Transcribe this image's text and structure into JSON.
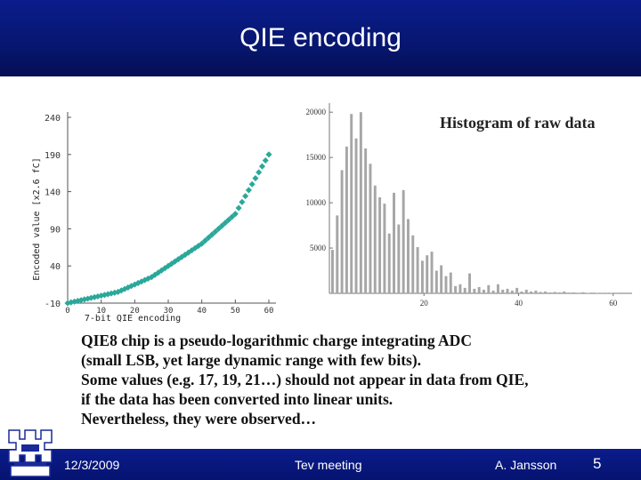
{
  "slide": {
    "title": "QIE encoding",
    "body_lines": [
      "QIE8 chip is a pseudo-logarithmic charge integrating ADC",
      "(small LSB, yet large dynamic range with few bits).",
      "Some  values (e.g. 17, 19, 21…) should not appear in data from QIE,",
      "if the data has been converted into linear units.",
      "Nevertheless, they were observed…"
    ],
    "footer": {
      "date": "12/3/2009",
      "meeting": "Tev meeting",
      "author": "A. Jansson",
      "page": "5"
    },
    "colors": {
      "title_band": "#07166f",
      "marker": "#2aa89a",
      "histogram_bar": "#a6a6a6"
    },
    "logo_icon": "fermilab-logo-icon"
  },
  "chart_data": [
    {
      "type": "scatter",
      "title": "",
      "xlabel": "7-bit QIE encoding",
      "ylabel": "Encoded value [x2.6 fC]",
      "x_ticks": [
        "0",
        "10",
        "20",
        "30",
        "40",
        "50",
        "60"
      ],
      "y_ticks": [
        "-10",
        "40",
        "90",
        "140",
        "190",
        "240"
      ],
      "xlim": [
        0,
        60
      ],
      "ylim": [
        -10,
        240
      ],
      "grid": false,
      "series": [
        {
          "x": [
            0,
            1,
            2,
            3,
            4,
            5,
            6,
            7,
            8,
            9,
            10,
            11,
            12,
            13,
            14,
            15,
            16,
            17,
            18,
            19,
            20,
            21,
            22,
            23,
            24,
            25,
            26,
            27,
            28,
            29,
            30,
            31,
            32,
            33,
            34,
            35,
            36,
            37,
            38,
            39,
            40,
            41,
            42,
            43,
            44,
            45,
            46,
            47,
            48,
            49,
            50,
            51,
            52,
            53,
            54,
            55,
            56,
            57,
            58,
            59,
            60
          ],
          "y": [
            -10,
            -9,
            -8,
            -7,
            -6,
            -5,
            -4,
            -3,
            -2,
            -1,
            0,
            1,
            2,
            3,
            4,
            5,
            7,
            9,
            11,
            13,
            15,
            17,
            19,
            21,
            23,
            25,
            28,
            31,
            34,
            37,
            40,
            43,
            46,
            49,
            52,
            55,
            58,
            61,
            64,
            67,
            70,
            74,
            78,
            82,
            86,
            90,
            94,
            98,
            102,
            106,
            110,
            118,
            126,
            134,
            142,
            150,
            158,
            166,
            174,
            182,
            190
          ]
        }
      ]
    },
    {
      "type": "bar",
      "title": "Histogram of raw data",
      "xlabel": "",
      "ylabel": "",
      "x_ticks": [
        "20",
        "40",
        "60"
      ],
      "y_ticks": [
        "5000",
        "10000",
        "15000",
        "20000"
      ],
      "xlim": [
        0,
        64
      ],
      "ylim": [
        0,
        21000
      ],
      "categories": [
        0,
        1,
        2,
        3,
        4,
        5,
        6,
        7,
        8,
        9,
        10,
        11,
        12,
        13,
        14,
        15,
        16,
        17,
        18,
        19,
        20,
        21,
        22,
        23,
        24,
        25,
        26,
        27,
        28,
        29,
        30,
        31,
        32,
        33,
        34,
        35,
        36,
        37,
        38,
        39,
        40,
        41,
        42,
        43,
        44,
        45,
        46,
        47,
        48,
        49,
        50,
        51,
        52,
        53,
        54,
        55,
        56,
        57,
        58,
        59,
        60
      ],
      "values": [
        4800,
        8600,
        13600,
        16200,
        19800,
        17100,
        20000,
        16000,
        14300,
        11900,
        10600,
        9900,
        6600,
        11100,
        7600,
        11400,
        8200,
        6400,
        5100,
        3600,
        4200,
        4600,
        2500,
        3100,
        1900,
        2300,
        800,
        1000,
        600,
        2200,
        500,
        700,
        400,
        900,
        300,
        1000,
        400,
        500,
        300,
        600,
        200,
        400,
        200,
        300,
        150,
        200,
        100,
        150,
        100,
        200,
        80,
        100,
        60,
        120,
        50,
        80,
        40,
        60,
        30,
        40,
        20
      ]
    }
  ]
}
